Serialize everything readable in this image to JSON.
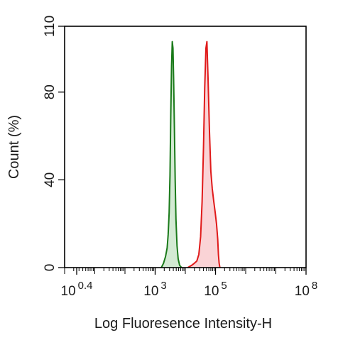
{
  "chart_data": {
    "type": "area",
    "title": "",
    "xlabel": "Log Fluoresence Intensity-H",
    "ylabel": "Count  (%)",
    "xscale": "log",
    "xlim": [
      1,
      100000000
    ],
    "ylim": [
      0,
      110
    ],
    "x_ticks": [
      {
        "base": "10",
        "exp": "0.4",
        "value": 2.512
      },
      {
        "base": "10",
        "exp": "3",
        "value": 1000
      },
      {
        "base": "10",
        "exp": "5",
        "value": 100000
      },
      {
        "base": "10",
        "exp": "8",
        "value": 100000000
      }
    ],
    "y_ticks": [
      {
        "label": "0",
        "value": 0
      },
      {
        "label": "40",
        "value": 40
      },
      {
        "label": "80",
        "value": 80
      },
      {
        "label": "110",
        "value": 110
      }
    ],
    "grid": false,
    "legend": "none",
    "series": [
      {
        "color": "#1a7a1a",
        "fill": "#d3ead3",
        "x": [
          1600,
          1900,
          2200,
          2500,
          2700,
          2900,
          3100,
          3300,
          3500,
          3700,
          3900,
          4100,
          4350,
          4600,
          4900,
          5300,
          5800,
          6500,
          7500
        ],
        "y": [
          0,
          2,
          5,
          9,
          15,
          25,
          42,
          70,
          92,
          103,
          100,
          86,
          64,
          40,
          22,
          10,
          4,
          1,
          0
        ]
      },
      {
        "color": "#e01a1a",
        "fill": "#fad3d6",
        "x": [
          12000,
          16000,
          20000,
          24000,
          28000,
          32000,
          36000,
          40000,
          44000,
          48000,
          52000,
          57000,
          63000,
          70000,
          78000,
          88000,
          98000,
          108000,
          118000,
          125000,
          132000,
          140000
        ],
        "y": [
          0,
          1,
          2,
          3,
          6,
          14,
          30,
          55,
          82,
          100,
          103,
          85,
          62,
          44,
          36,
          30,
          25,
          20,
          13,
          6,
          2,
          0
        ]
      }
    ]
  }
}
